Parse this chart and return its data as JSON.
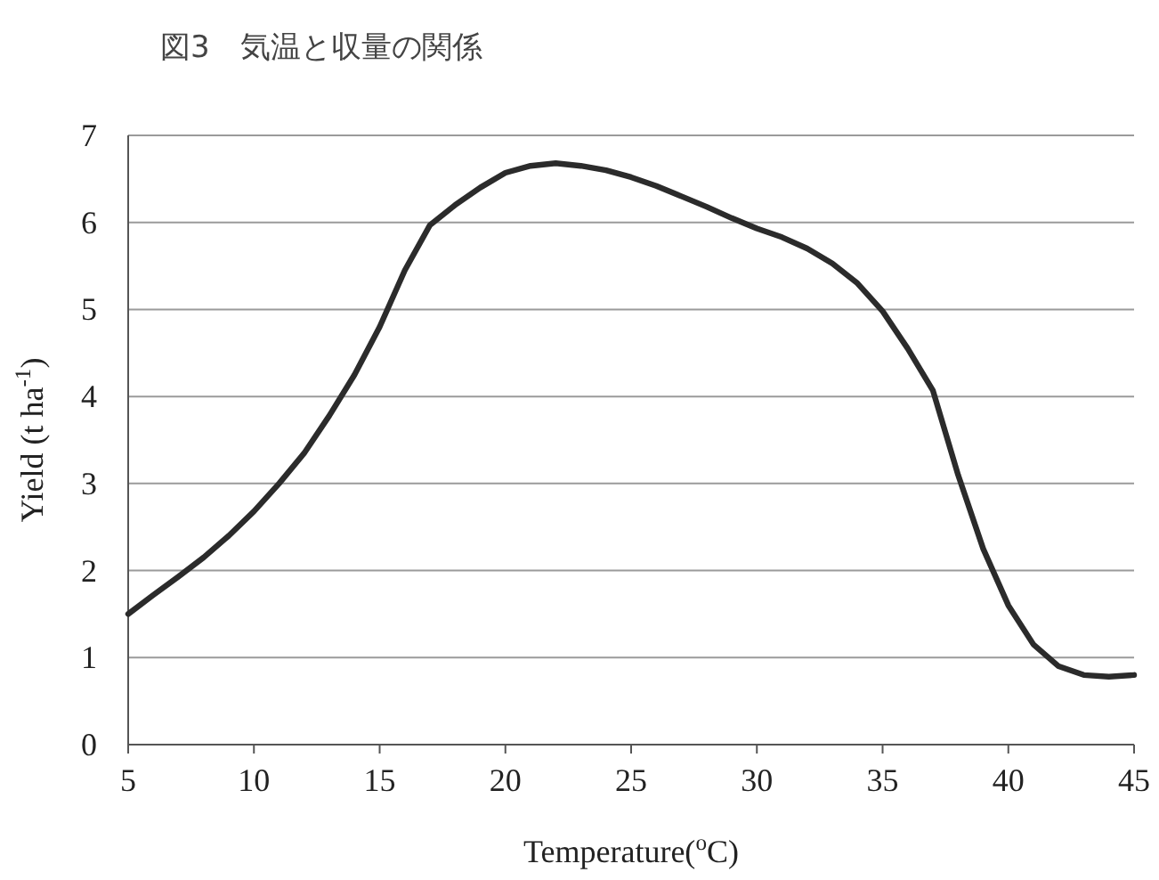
{
  "chart_data": {
    "type": "line",
    "title": "図3　気温と収量の関係",
    "xlabel": "Temperature($^{o}$C)",
    "ylabel": "Yield (t ha$^{-1}$)",
    "x": [
      5,
      6,
      7,
      8,
      9,
      10,
      11,
      12,
      13,
      14,
      15,
      16,
      17,
      18,
      19,
      20,
      21,
      22,
      23,
      24,
      25,
      26,
      27,
      28,
      29,
      30,
      31,
      32,
      33,
      34,
      35,
      36,
      37,
      38,
      39,
      40,
      41,
      42,
      43,
      44,
      45
    ],
    "series": [
      {
        "color": "#2b2b2b",
        "values": [
          1.5,
          1.72,
          1.93,
          2.15,
          2.4,
          2.68,
          3.0,
          3.35,
          3.78,
          4.25,
          4.8,
          5.45,
          5.97,
          6.2,
          6.4,
          6.57,
          6.65,
          6.68,
          6.65,
          6.6,
          6.52,
          6.42,
          6.3,
          6.18,
          6.05,
          5.93,
          5.83,
          5.7,
          5.53,
          5.3,
          4.98,
          4.55,
          4.07,
          3.1,
          2.25,
          1.6,
          1.15,
          0.9,
          0.8,
          0.78,
          0.8
        ]
      }
    ],
    "xlim": [
      5,
      45
    ],
    "ylim": [
      0,
      7
    ],
    "xticks": [
      5,
      10,
      15,
      20,
      25,
      30,
      35,
      40,
      45
    ],
    "yticks": [
      0,
      1,
      2,
      3,
      4,
      5,
      6,
      7
    ],
    "grid": "y",
    "line_style": "solid"
  }
}
